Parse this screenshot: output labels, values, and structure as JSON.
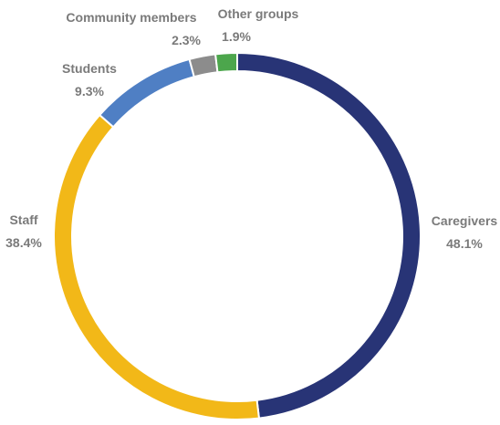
{
  "chart_data": {
    "type": "pie",
    "variant": "donut",
    "title": "",
    "legend": "none",
    "slices": [
      {
        "name": "Caregivers",
        "value": 48.1,
        "label": "48.1%",
        "color": "#283476"
      },
      {
        "name": "Staff",
        "value": 38.4,
        "label": "38.4%",
        "color": "#F2B818"
      },
      {
        "name": "Students",
        "value": 9.3,
        "label": "9.3%",
        "color": "#4F7FC4"
      },
      {
        "name": "Community members",
        "value": 2.3,
        "label": "2.3%",
        "color": "#8C8C8C"
      },
      {
        "name": "Other groups",
        "value": 1.9,
        "label": "1.9%",
        "color": "#4CA64C"
      }
    ],
    "label_color": "#7A7A7A",
    "separator_color": "#FFFFFF"
  }
}
